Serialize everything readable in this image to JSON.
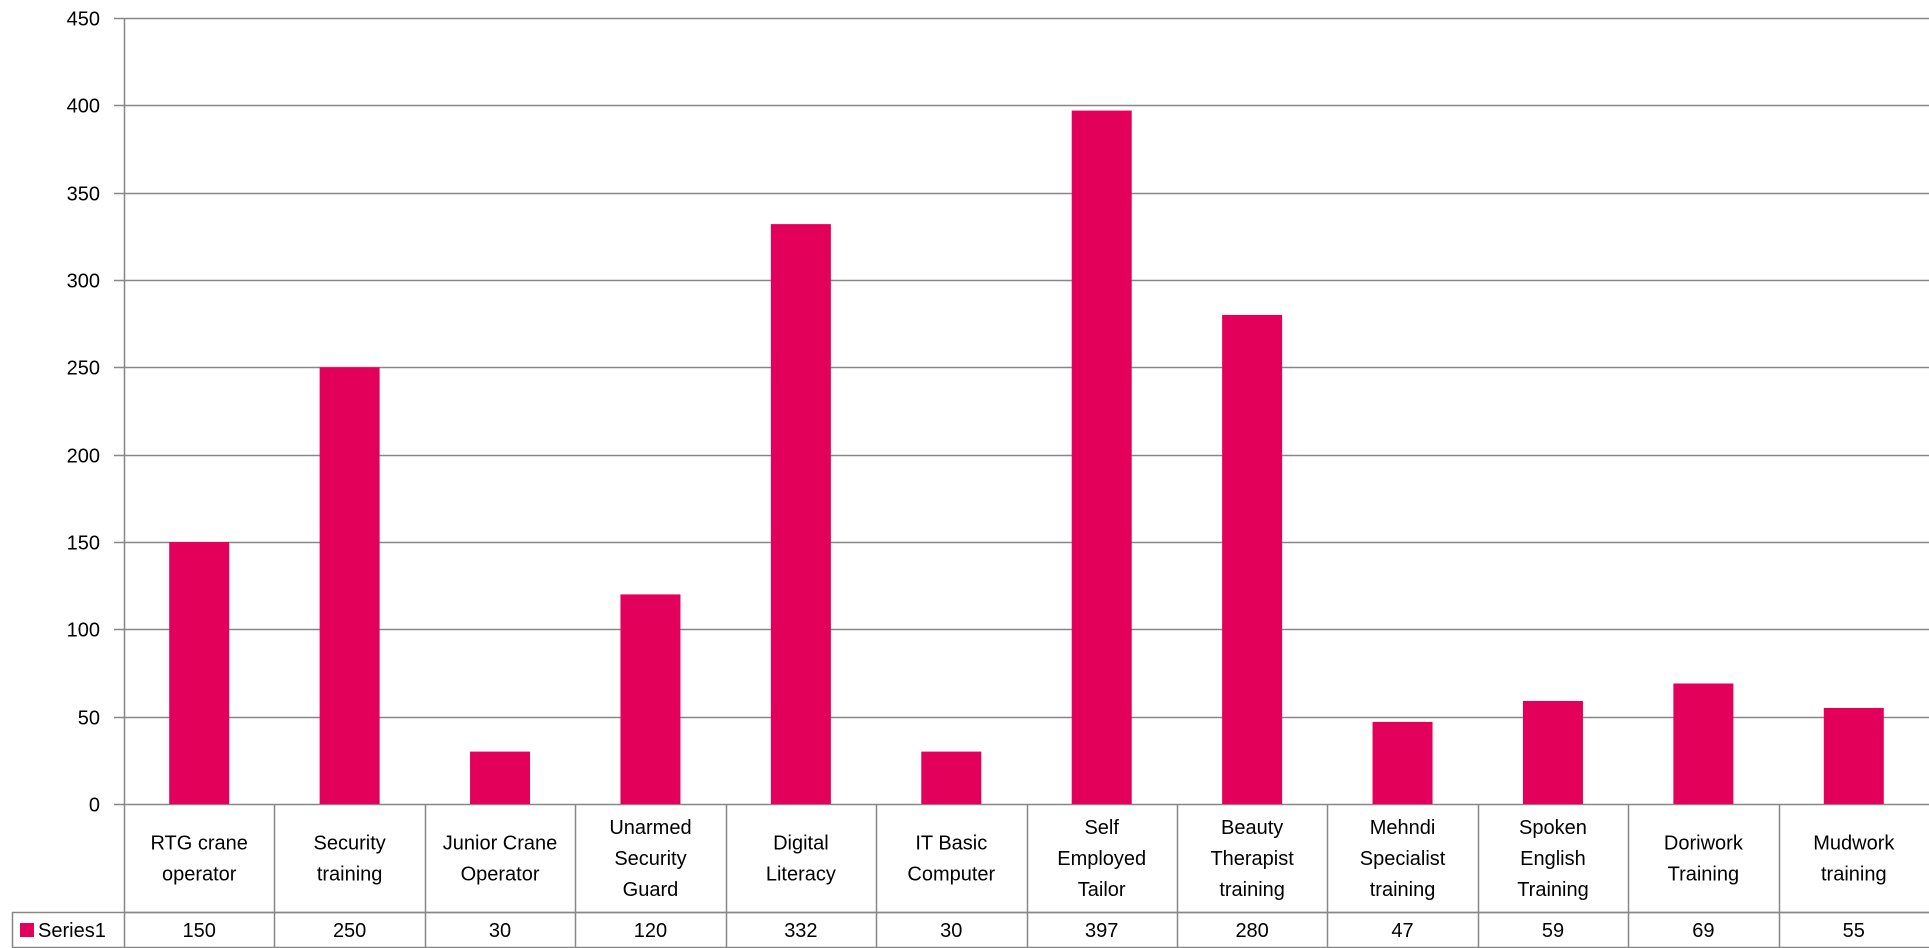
{
  "chart_data": {
    "type": "bar",
    "title": "",
    "xlabel": "",
    "ylabel": "",
    "ylim": [
      0,
      450
    ],
    "yticks": [
      0,
      50,
      100,
      150,
      200,
      250,
      300,
      350,
      400,
      450
    ],
    "grid": true,
    "legend": "data-table",
    "categories": [
      "RTG crane operator",
      "Security training",
      "Junior Crane Operator",
      "Unarmed Security Guard",
      "Digital Literacy",
      "IT Basic Computer",
      "Self Employed Tailor",
      "Beauty Therapist training",
      "Mehndi Specialist training",
      "Spoken English Training",
      "Doriwork Training",
      "Mudwork training"
    ],
    "category_lines": [
      [
        "RTG crane",
        "operator"
      ],
      [
        "Security",
        "training"
      ],
      [
        "Junior Crane",
        "Operator"
      ],
      [
        "Unarmed",
        "Security",
        "Guard"
      ],
      [
        "Digital",
        "Literacy"
      ],
      [
        "IT Basic",
        "Computer"
      ],
      [
        "Self",
        "Employed",
        "Tailor"
      ],
      [
        "Beauty",
        "Therapist",
        "training"
      ],
      [
        "Mehndi",
        "Specialist",
        "training"
      ],
      [
        "Spoken",
        "English",
        "Training"
      ],
      [
        "Doriwork",
        "Training"
      ],
      [
        "Mudwork",
        "training"
      ]
    ],
    "series": [
      {
        "name": "Series1",
        "color": "#E2005A",
        "values": [
          150,
          250,
          30,
          120,
          332,
          30,
          397,
          280,
          47,
          59,
          69,
          55
        ]
      }
    ]
  }
}
